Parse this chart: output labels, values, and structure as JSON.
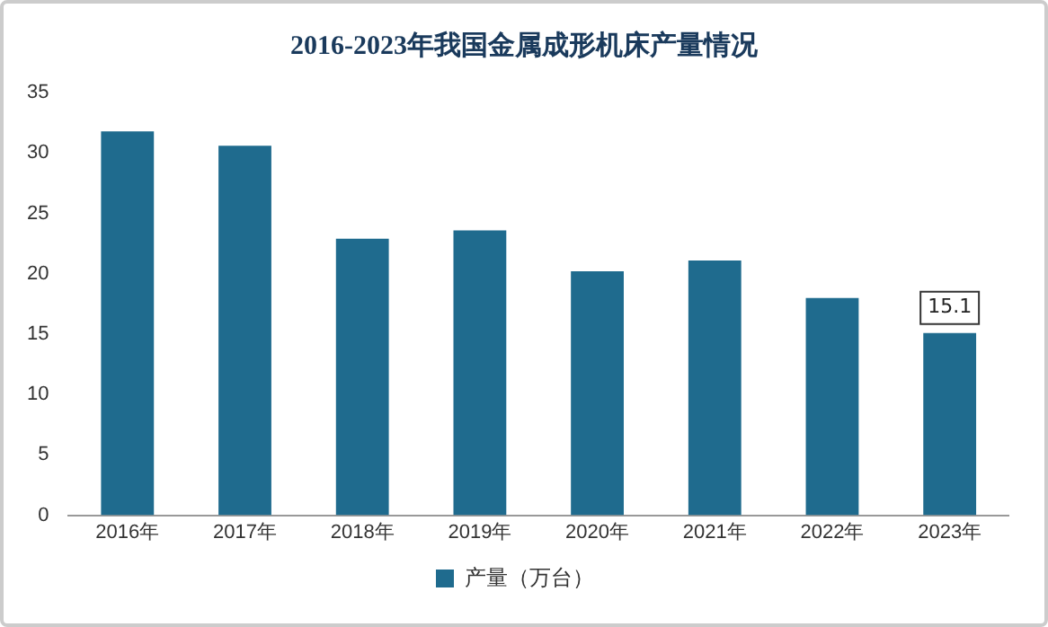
{
  "chart_data": {
    "type": "bar",
    "title": "2016-2023年我国金属成形机床产量情况",
    "categories": [
      "2016年",
      "2017年",
      "2018年",
      "2019年",
      "2020年",
      "2021年",
      "2022年",
      "2023年"
    ],
    "series": [
      {
        "name": "产量（万台）",
        "color": "#1f6b8e",
        "values": [
          31.8,
          30.6,
          22.9,
          23.6,
          20.2,
          21.1,
          18.0,
          15.1
        ],
        "value_labels": [
          null,
          null,
          null,
          null,
          null,
          null,
          null,
          "15.1"
        ]
      }
    ],
    "ylim": [
      0,
      35
    ],
    "yticks": [
      0,
      5,
      10,
      15,
      20,
      25,
      30,
      35
    ],
    "grid": false,
    "legend": "bottom"
  }
}
